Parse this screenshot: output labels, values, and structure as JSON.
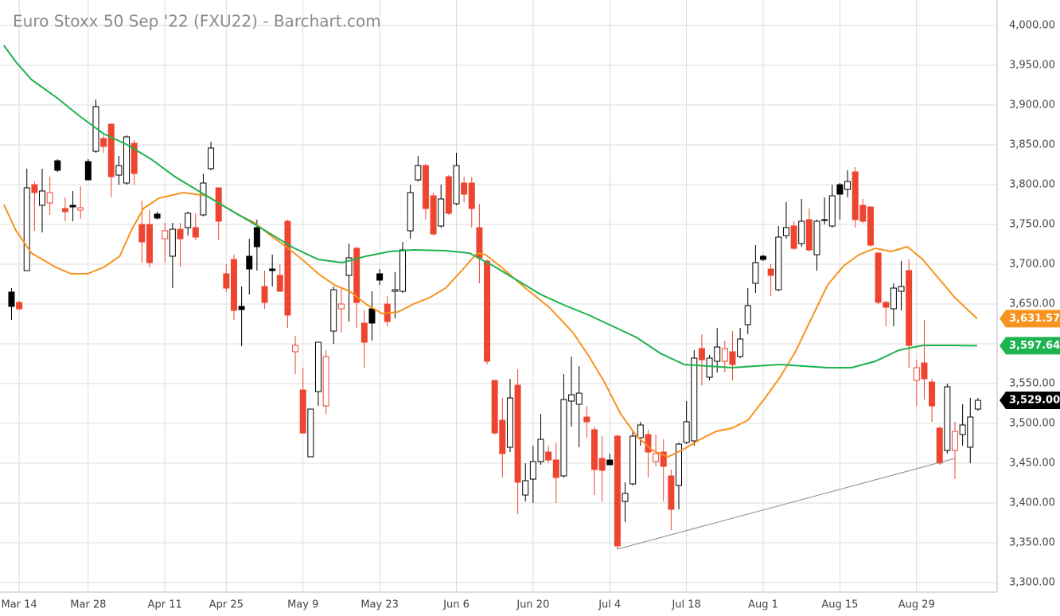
{
  "chart_data": {
    "type": "candlestick",
    "title": "Euro Stoxx 50 Sep '22 (FXU22) - Barchart.com",
    "categories": [
      null,
      "Mar 14",
      null,
      null,
      null,
      null,
      null,
      null,
      null,
      null,
      "Mar 28",
      null,
      null,
      null,
      null,
      null,
      null,
      null,
      null,
      null,
      "Apr 11",
      null,
      null,
      null,
      null,
      null,
      null,
      null,
      "Apr 25",
      null,
      null,
      null,
      null,
      null,
      null,
      null,
      null,
      null,
      "May 9",
      null,
      null,
      null,
      null,
      null,
      null,
      null,
      null,
      null,
      "May 23",
      null,
      null,
      null,
      null,
      null,
      null,
      null,
      null,
      null,
      "Jun 6",
      null,
      null,
      null,
      null,
      null,
      null,
      null,
      null,
      null,
      "Jun 20",
      null,
      null,
      null,
      null,
      null,
      null,
      null,
      null,
      null,
      "Jul 4",
      null,
      null,
      null,
      null,
      null,
      null,
      null,
      null,
      null,
      "Jul 18",
      null,
      null,
      null,
      null,
      null,
      null,
      null,
      null,
      null,
      "Aug 1",
      null,
      null,
      null,
      null,
      null,
      null,
      null,
      null,
      null,
      "Aug 15",
      null,
      null,
      null,
      null,
      null,
      null,
      null,
      null,
      null,
      "Aug 29",
      null,
      null,
      null,
      null,
      null,
      null,
      null,
      null
    ],
    "open": [
      3665,
      3652,
      3692,
      3800,
      3774,
      3777,
      3830,
      3770,
      3774,
      3768,
      3829,
      3842,
      3858,
      3876,
      3812,
      3802,
      3852,
      3750,
      3750,
      3763,
      3732,
      3710,
      3744,
      3746,
      3746,
      3762,
      3820,
      3796,
      3688,
      3706,
      3647,
      3710,
      3746,
      3672,
      3694,
      3686,
      3754,
      3590,
      3542,
      3458,
      3540,
      3522,
      3616,
      3644,
      3686,
      3720,
      3626,
      3644,
      3688,
      3650,
      3666,
      3666,
      3742,
      3806,
      3824,
      3786,
      3748,
      3810,
      3776,
      3802,
      3802,
      3746,
      3704,
      3554,
      3504,
      3470,
      3548,
      3410,
      3430,
      3452,
      3464,
      3454,
      3434,
      3528,
      3524,
      3508,
      3492,
      3456,
      3454,
      3484,
      3402,
      3424,
      3482,
      3486,
      3452,
      3464,
      3434,
      3422,
      3476,
      3478,
      3594,
      3558,
      3578,
      3578,
      3590,
      3584,
      3624,
      3676,
      3710,
      3694,
      3668,
      3736,
      3748,
      3726,
      3756,
      3712,
      3756,
      3748,
      3800,
      3794,
      3816,
      3774,
      3772,
      3714,
      3652,
      3644,
      3666,
      3692,
      3554,
      3576,
      3552,
      3494,
      3466,
      3466,
      3486,
      3470,
      3518
    ],
    "high": [
      3670,
      3654,
      3820,
      3804,
      3820,
      3810,
      3832,
      3784,
      3792,
      3798,
      3832,
      3907,
      3862,
      3876,
      3836,
      3862,
      3856,
      3780,
      3768,
      3766,
      3752,
      3752,
      3752,
      3766,
      3764,
      3814,
      3854,
      3796,
      3700,
      3712,
      3672,
      3732,
      3756,
      3692,
      3712,
      3700,
      3756,
      3610,
      3570,
      3518,
      3602,
      3592,
      3672,
      3670,
      3726,
      3722,
      3642,
      3666,
      3694,
      3660,
      3690,
      3728,
      3800,
      3836,
      3826,
      3790,
      3800,
      3812,
      3840,
      3810,
      3810,
      3776,
      3706,
      3554,
      3532,
      3556,
      3568,
      3450,
      3472,
      3512,
      3472,
      3476,
      3562,
      3584,
      3572,
      3522,
      3496,
      3484,
      3462,
      3486,
      3426,
      3492,
      3502,
      3492,
      3486,
      3480,
      3442,
      3476,
      3528,
      3592,
      3612,
      3586,
      3620,
      3604,
      3616,
      3620,
      3670,
      3724,
      3712,
      3700,
      3748,
      3778,
      3754,
      3782,
      3770,
      3756,
      3784,
      3800,
      3802,
      3818,
      3822,
      3782,
      3772,
      3716,
      3654,
      3676,
      3704,
      3706,
      3580,
      3630,
      3556,
      3496,
      3550,
      3502,
      3524,
      3532,
      3532
    ],
    "low": [
      3630,
      3642,
      3692,
      3742,
      3740,
      3762,
      3816,
      3754,
      3754,
      3757,
      3806,
      3840,
      3840,
      3784,
      3800,
      3800,
      3800,
      3702,
      3696,
      3756,
      3702,
      3670,
      3697,
      3736,
      3730,
      3760,
      3818,
      3730,
      3665,
      3630,
      3597,
      3662,
      3692,
      3644,
      3672,
      3666,
      3620,
      3562,
      3487,
      3458,
      3522,
      3512,
      3600,
      3614,
      3628,
      3620,
      3570,
      3604,
      3674,
      3622,
      3632,
      3664,
      3732,
      3804,
      3756,
      3736,
      3746,
      3762,
      3774,
      3778,
      3746,
      3676,
      3574,
      3486,
      3432,
      3464,
      3386,
      3402,
      3400,
      3448,
      3450,
      3400,
      3432,
      3496,
      3470,
      3482,
      3410,
      3402,
      3448,
      3342,
      3376,
      3422,
      3472,
      3432,
      3446,
      3402,
      3366,
      3392,
      3474,
      3472,
      3548,
      3554,
      3564,
      3564,
      3554,
      3582,
      3612,
      3664,
      3704,
      3660,
      3666,
      3732,
      3718,
      3722,
      3716,
      3692,
      3750,
      3746,
      3756,
      3784,
      3746,
      3752,
      3722,
      3650,
      3622,
      3622,
      3642,
      3570,
      3522,
      3530,
      3502,
      3448,
      3462,
      3430,
      3472,
      3450,
      3516
    ],
    "close": [
      3647,
      3644,
      3796,
      3790,
      3792,
      3790,
      3818,
      3766,
      3772,
      3771,
      3806,
      3898,
      3848,
      3810,
      3824,
      3860,
      3814,
      3728,
      3702,
      3758,
      3742,
      3744,
      3732,
      3764,
      3734,
      3802,
      3846,
      3754,
      3670,
      3642,
      3643,
      3694,
      3722,
      3652,
      3692,
      3666,
      3636,
      3598,
      3488,
      3518,
      3602,
      3584,
      3668,
      3650,
      3708,
      3652,
      3602,
      3626,
      3680,
      3628,
      3668,
      3718,
      3790,
      3824,
      3770,
      3738,
      3782,
      3764,
      3824,
      3788,
      3770,
      3708,
      3578,
      3488,
      3462,
      3532,
      3426,
      3428,
      3452,
      3480,
      3454,
      3432,
      3530,
      3536,
      3538,
      3502,
      3442,
      3441,
      3448,
      3346,
      3412,
      3484,
      3498,
      3464,
      3462,
      3446,
      3392,
      3474,
      3502,
      3582,
      3580,
      3582,
      3596,
      3594,
      3574,
      3606,
      3648,
      3702,
      3706,
      3686,
      3734,
      3746,
      3720,
      3754,
      3718,
      3754,
      3755,
      3786,
      3788,
      3804,
      3756,
      3754,
      3724,
      3652,
      3646,
      3670,
      3672,
      3598,
      3570,
      3556,
      3522,
      3450,
      3546,
      3490,
      3498,
      3508,
      3529
    ],
    "last_close_label": "3,529.00",
    "up_color": "#000000",
    "down_color": "#ee4530",
    "series": [
      {
        "color": "#f7931e",
        "last_label": "3,631.57",
        "x": [
          -1,
          0.6,
          2.6,
          5.8,
          7.8,
          9.9,
          12,
          14.1,
          15.6,
          17.2,
          19.2,
          22.4,
          25.5,
          27.5,
          29.6,
          31.7,
          33.8,
          35.8,
          37.9,
          40,
          42.1,
          44.1,
          46.2,
          48.3,
          50.4,
          52.4,
          54.5,
          56.6,
          58.7,
          60.7,
          61.8,
          63.9,
          67,
          70.1,
          73.2,
          75.3,
          77.3,
          79.4,
          81.5,
          83.6,
          85.6,
          87.7,
          89.8,
          91.9,
          93.9,
          96,
          98.1,
          100.2,
          102.2,
          104.3,
          106.4,
          108.5,
          110.5,
          112.6,
          114.7,
          116.8,
          118.8,
          120.9,
          123,
          125.9
        ],
        "values": [
          3775,
          3742,
          3714,
          3696,
          3688,
          3688,
          3696,
          3710,
          3742,
          3770,
          3783,
          3790,
          3786,
          3774,
          3762,
          3752,
          3736,
          3722,
          3706,
          3688,
          3674,
          3666,
          3650,
          3638,
          3640,
          3650,
          3658,
          3670,
          3692,
          3714,
          3712,
          3696,
          3670,
          3646,
          3614,
          3584,
          3552,
          3512,
          3484,
          3466,
          3458,
          3468,
          3480,
          3490,
          3494,
          3504,
          3530,
          3558,
          3590,
          3632,
          3674,
          3698,
          3712,
          3720,
          3716,
          3722,
          3706,
          3682,
          3658,
          3631.57
        ]
      },
      {
        "color": "#1db34f",
        "last_label": "3,597.64",
        "x": [
          -1,
          0.6,
          2.6,
          5.8,
          8.9,
          12,
          15.1,
          18.2,
          21.3,
          24.4,
          27.5,
          30.7,
          33.8,
          36.9,
          40,
          43.1,
          46.2,
          49.3,
          52.4,
          56.6,
          59.7,
          62.8,
          65.9,
          69,
          72.2,
          75.3,
          78.4,
          81.5,
          84.6,
          87.7,
          90.8,
          93.9,
          97,
          100.2,
          103.3,
          106.4,
          109.5,
          112.6,
          115.7,
          118.8,
          123,
          125.9
        ],
        "values": [
          3975,
          3954,
          3932,
          3910,
          3886,
          3864,
          3850,
          3832,
          3810,
          3792,
          3774,
          3756,
          3738,
          3720,
          3706,
          3702,
          3710,
          3716,
          3718,
          3717,
          3714,
          3698,
          3680,
          3662,
          3648,
          3636,
          3622,
          3608,
          3588,
          3574,
          3572,
          3570,
          3572,
          3574,
          3572,
          3570,
          3570,
          3578,
          3592,
          3598,
          3598,
          3597.64
        ]
      }
    ],
    "trendline": {
      "color": "#8c8c8c",
      "x": [
        79,
        123
      ],
      "values": [
        3342,
        3456
      ]
    },
    "xlim": [
      -1.5,
      128.5
    ],
    "ylim": [
      3288,
      4032
    ],
    "yticks": [
      {
        "value": 3300,
        "label": "3,300.00"
      },
      {
        "value": 3350,
        "label": "3,350.00"
      },
      {
        "value": 3400,
        "label": "3,400.00"
      },
      {
        "value": 3450,
        "label": "3,450.00"
      },
      {
        "value": 3500,
        "label": "3,500.00"
      },
      {
        "value": 3550,
        "label": "3,550.00"
      },
      {
        "value": 3600,
        "label": "3,600.00"
      },
      {
        "value": 3650,
        "label": "3,650.00"
      },
      {
        "value": 3700,
        "label": "3,700.00"
      },
      {
        "value": 3750,
        "label": "3,750.00"
      },
      {
        "value": 3800,
        "label": "3,800.00"
      },
      {
        "value": 3850,
        "label": "3,850.00"
      },
      {
        "value": 3900,
        "label": "3,900.00"
      },
      {
        "value": 3950,
        "label": "3,950.00"
      },
      {
        "value": 4000,
        "label": "4,000.00"
      }
    ],
    "grid": true
  }
}
